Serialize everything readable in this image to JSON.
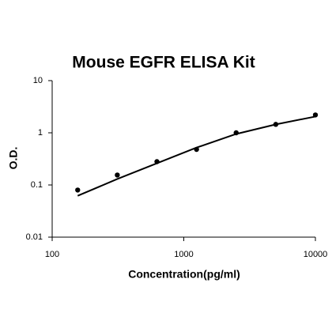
{
  "chart_data": {
    "type": "scatter",
    "title": "Mouse EGFR ELISA Kit",
    "x_label": "Concentration(pg/ml)",
    "y_label": "O.D.",
    "x": [
      156.25,
      312.5,
      625,
      1250,
      2500,
      5000,
      10000
    ],
    "series": [
      {
        "color": "#000000",
        "style": "dots",
        "values": [
          0.08,
          0.155,
          0.28,
          0.48,
          1.0,
          1.45,
          2.2
        ]
      },
      {
        "color": "#000000",
        "style": "line",
        "values": [
          0.062,
          0.13,
          0.26,
          0.52,
          0.95,
          1.45,
          2.05
        ]
      }
    ],
    "xscale": "log",
    "yscale": "log",
    "xlim": [
      100,
      10000
    ],
    "xticks": [
      100,
      1000,
      10000
    ],
    "ylim": [
      0.01,
      10
    ],
    "yticks": [
      0.01,
      0.1,
      1,
      10
    ]
  }
}
